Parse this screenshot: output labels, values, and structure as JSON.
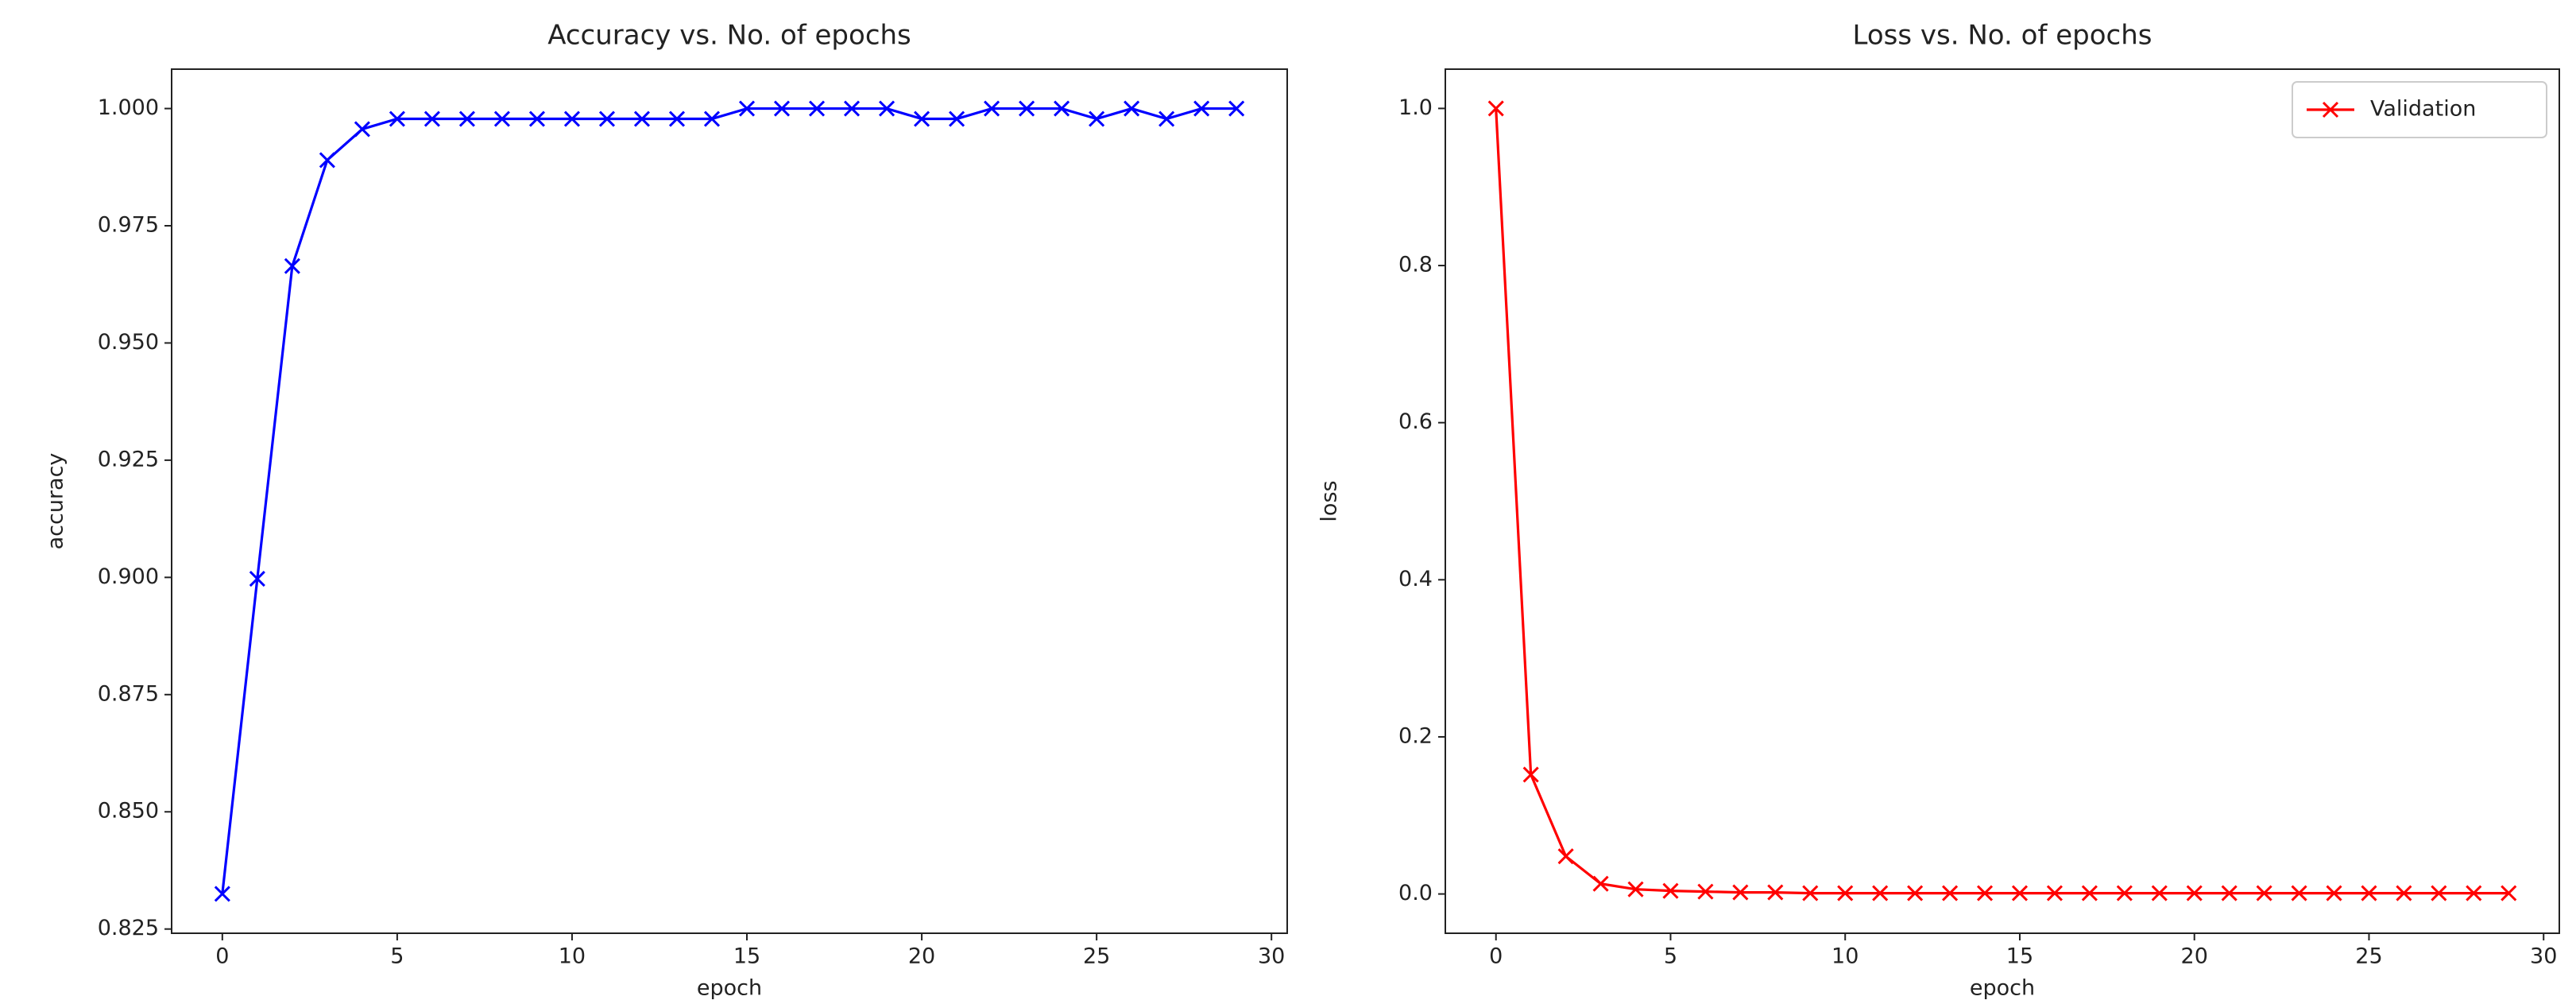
{
  "chart_data": [
    {
      "type": "line",
      "title": "Accuracy vs. No. of epochs",
      "xlabel": "epoch",
      "ylabel": "accuracy",
      "x": [
        0,
        1,
        2,
        3,
        4,
        5,
        6,
        7,
        8,
        9,
        10,
        11,
        12,
        13,
        14,
        15,
        16,
        17,
        18,
        19,
        20,
        21,
        22,
        23,
        24,
        25,
        26,
        27,
        28,
        29
      ],
      "series": [
        {
          "color": "#0000ff",
          "marker": "x",
          "values": [
            0.8325,
            0.8997,
            0.9664,
            0.989,
            0.9956,
            0.9978,
            0.9978,
            0.9978,
            0.9978,
            0.9978,
            0.9978,
            0.9978,
            0.9978,
            0.9978,
            0.9978,
            1.0,
            1.0,
            1.0,
            1.0,
            1.0,
            0.9978,
            0.9978,
            1.0,
            1.0,
            1.0,
            0.9978,
            1.0,
            0.9978,
            1.0,
            1.0
          ]
        }
      ],
      "xlim": [
        -1.45,
        30.45
      ],
      "xticks": [
        0,
        5,
        10,
        15,
        20,
        25,
        30
      ],
      "ylim": [
        0.8241,
        1.0084
      ],
      "yticks": [
        0.825,
        {
          "value": 0.85,
          "label": "0.850"
        },
        0.875,
        {
          "value": 0.9,
          "label": "0.900"
        },
        0.925,
        {
          "value": 0.95,
          "label": "0.950"
        },
        0.975,
        {
          "value": 1.0,
          "label": "1.000"
        }
      ]
    },
    {
      "type": "line",
      "title": "Loss vs. No. of epochs",
      "xlabel": "epoch",
      "ylabel": "loss",
      "x": [
        0,
        1,
        2,
        3,
        4,
        5,
        6,
        7,
        8,
        9,
        10,
        11,
        12,
        13,
        14,
        15,
        16,
        17,
        18,
        19,
        20,
        21,
        22,
        23,
        24,
        25,
        26,
        27,
        28,
        29
      ],
      "series": [
        {
          "name": "Validation",
          "color": "#ff0000",
          "marker": "x",
          "values": [
            1.0,
            0.152,
            0.048,
            0.013,
            0.006,
            0.004,
            0.003,
            0.002,
            0.002,
            0.001,
            0.001,
            0.001,
            0.001,
            0.001,
            0.001,
            0.001,
            0.001,
            0.001,
            0.001,
            0.001,
            0.001,
            0.001,
            0.001,
            0.001,
            0.001,
            0.001,
            0.001,
            0.001,
            0.001,
            0.001
          ]
        }
      ],
      "xlim": [
        -1.45,
        30.45
      ],
      "xticks": [
        0,
        5,
        10,
        15,
        20,
        25,
        30
      ],
      "ylim": [
        -0.05,
        1.05
      ],
      "yticks": [
        {
          "value": 0.0,
          "label": "0.0"
        },
        0.2,
        0.4,
        0.6,
        0.8,
        {
          "value": 1.0,
          "label": "1.0"
        }
      ],
      "legend": "upper right"
    }
  ]
}
